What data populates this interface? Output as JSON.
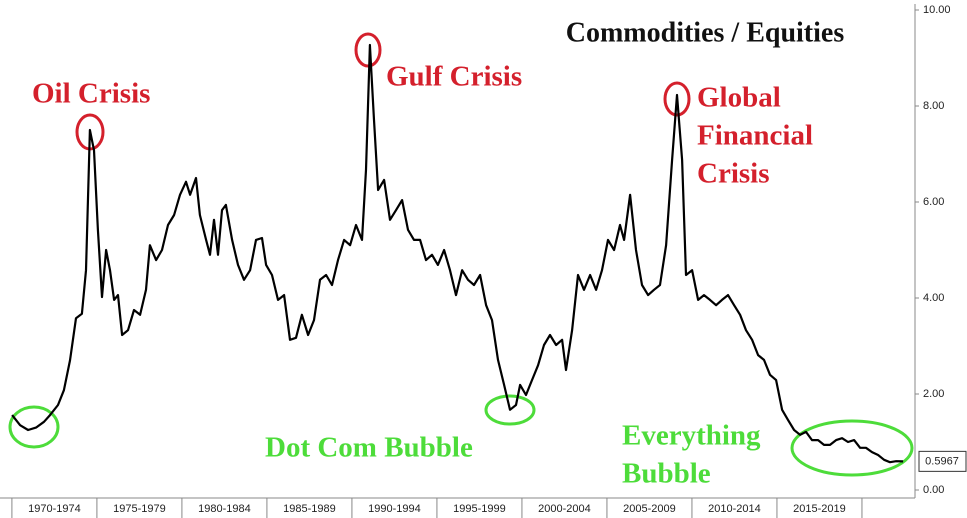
{
  "chart_data": {
    "type": "line",
    "title": "Commodities / Equities",
    "color": "#000000",
    "x": [
      1970.01,
      1970.48,
      1970.95,
      1971.42,
      1971.89,
      1972.24,
      1972.71,
      1973.06,
      1973.42,
      1973.77,
      1974.12,
      1974.36,
      1974.59,
      1974.83,
      1975.06,
      1975.3,
      1975.54,
      1975.77,
      1976.01,
      1976.24,
      1976.48,
      1976.83,
      1977.18,
      1977.54,
      1977.89,
      1978.12,
      1978.48,
      1978.83,
      1979.18,
      1979.54,
      1979.89,
      1980.24,
      1980.48,
      1980.83,
      1981.06,
      1981.42,
      1981.65,
      1981.89,
      1982.12,
      1982.36,
      1982.59,
      1982.95,
      1983.3,
      1983.65,
      1984.01,
      1984.36,
      1984.71,
      1984.95,
      1985.3,
      1985.65,
      1986.01,
      1986.36,
      1986.71,
      1987.06,
      1987.42,
      1987.77,
      1988.12,
      1988.48,
      1988.83,
      1989.18,
      1989.54,
      1989.89,
      1990.24,
      1990.59,
      1990.83,
      1991.06,
      1991.3,
      1991.54,
      1991.89,
      1992.24,
      1992.59,
      1992.95,
      1993.3,
      1993.65,
      1994.01,
      1994.36,
      1994.71,
      1995.06,
      1995.42,
      1995.77,
      1996.12,
      1996.48,
      1996.83,
      1997.18,
      1997.54,
      1997.89,
      1998.24,
      1998.59,
      1998.95,
      1999.3,
      1999.65,
      1999.89,
      2000.24,
      2000.59,
      2000.95,
      2001.3,
      2001.65,
      2002.01,
      2002.36,
      2002.59,
      2002.95,
      2003.3,
      2003.65,
      2004.01,
      2004.36,
      2004.71,
      2005.06,
      2005.42,
      2005.77,
      2006.01,
      2006.36,
      2006.71,
      2007.06,
      2007.42,
      2007.77,
      2008.12,
      2008.48,
      2008.83,
      2009.12,
      2009.42,
      2009.65,
      2010.01,
      2010.36,
      2010.71,
      2011.06,
      2011.42,
      2011.77,
      2012.12,
      2012.48,
      2012.83,
      2013.18,
      2013.54,
      2013.89,
      2014.24,
      2014.59,
      2014.95,
      2015.3,
      2015.65,
      2016.01,
      2016.36,
      2016.71,
      2017.06,
      2017.42,
      2017.77,
      2018.12,
      2018.48,
      2018.83,
      2019.18,
      2019.54,
      2019.89,
      2020.24,
      2020.59,
      2020.95,
      2021.3,
      2021.65,
      2022.01,
      2022.42
    ],
    "values": [
      1.56,
      1.35,
      1.25,
      1.3,
      1.42,
      1.56,
      1.77,
      2.08,
      2.7,
      3.58,
      3.67,
      4.58,
      7.5,
      7.08,
      5.42,
      4.02,
      5.0,
      4.58,
      3.96,
      4.06,
      3.23,
      3.33,
      3.75,
      3.65,
      4.17,
      5.1,
      4.79,
      5.0,
      5.52,
      5.73,
      6.15,
      6.42,
      6.15,
      6.5,
      5.73,
      5.21,
      4.9,
      5.63,
      4.9,
      5.83,
      5.94,
      5.21,
      4.69,
      4.38,
      4.58,
      5.21,
      5.25,
      4.69,
      4.48,
      3.96,
      4.06,
      3.13,
      3.17,
      3.65,
      3.23,
      3.54,
      4.38,
      4.48,
      4.27,
      4.79,
      5.21,
      5.1,
      5.52,
      5.21,
      6.67,
      9.27,
      7.71,
      6.25,
      6.46,
      5.63,
      5.83,
      6.04,
      5.42,
      5.21,
      5.21,
      4.79,
      4.9,
      4.69,
      5.0,
      4.58,
      4.06,
      4.58,
      4.38,
      4.27,
      4.48,
      3.85,
      3.54,
      2.71,
      2.19,
      1.67,
      1.77,
      2.19,
      1.98,
      2.29,
      2.6,
      3.02,
      3.23,
      3.02,
      3.13,
      2.5,
      3.33,
      4.48,
      4.17,
      4.48,
      4.17,
      4.58,
      5.21,
      5.0,
      5.52,
      5.21,
      6.15,
      5.0,
      4.27,
      4.06,
      4.17,
      4.27,
      5.1,
      6.88,
      8.23,
      6.88,
      4.48,
      4.58,
      3.96,
      4.06,
      3.96,
      3.85,
      3.96,
      4.06,
      3.85,
      3.65,
      3.33,
      3.13,
      2.81,
      2.71,
      2.4,
      2.29,
      1.67,
      1.46,
      1.25,
      1.15,
      1.21,
      1.04,
      1.04,
      0.94,
      0.94,
      1.04,
      1.08,
      1.0,
      1.04,
      0.88,
      0.88,
      0.79,
      0.73,
      0.63,
      0.58,
      0.6,
      0.5967
    ],
    "xlim": [
      1969.3,
      2023.12
    ],
    "xticks": [
      1970,
      1975,
      1980,
      1985,
      1990,
      1995,
      2000,
      2005,
      2010,
      2015,
      2020
    ],
    "categories": [
      "1970-1974",
      "1975-1979",
      "1980-1984",
      "1985-1989",
      "1990-1994",
      "1995-1999",
      "2000-2004",
      "2005-2009",
      "2010-2014",
      "2015-2019"
    ],
    "ylim": [
      0,
      10
    ],
    "yticks": [
      {
        "value": 0,
        "label": "0.00"
      },
      {
        "value": 2,
        "label": "2.00"
      },
      {
        "value": 4,
        "label": "4.00"
      },
      {
        "value": 6,
        "label": "6.00"
      },
      {
        "value": 8,
        "label": "8.00"
      },
      {
        "value": 10,
        "label": "10.00"
      }
    ],
    "annotations": [
      {
        "lines": [
          "Oil Crisis"
        ],
        "color": "#d4202c"
      },
      {
        "lines": [
          "Gulf Crisis"
        ],
        "color": "#d4202c"
      },
      {
        "lines": [
          "Global",
          "Financial",
          "Crisis"
        ],
        "color": "#d4202c"
      },
      {
        "lines": [
          "Dot Com Bubble"
        ],
        "color": "#4ddc3a"
      },
      {
        "lines": [
          "Everything",
          "Bubble"
        ],
        "color": "#4ddc3a"
      }
    ]
  }
}
